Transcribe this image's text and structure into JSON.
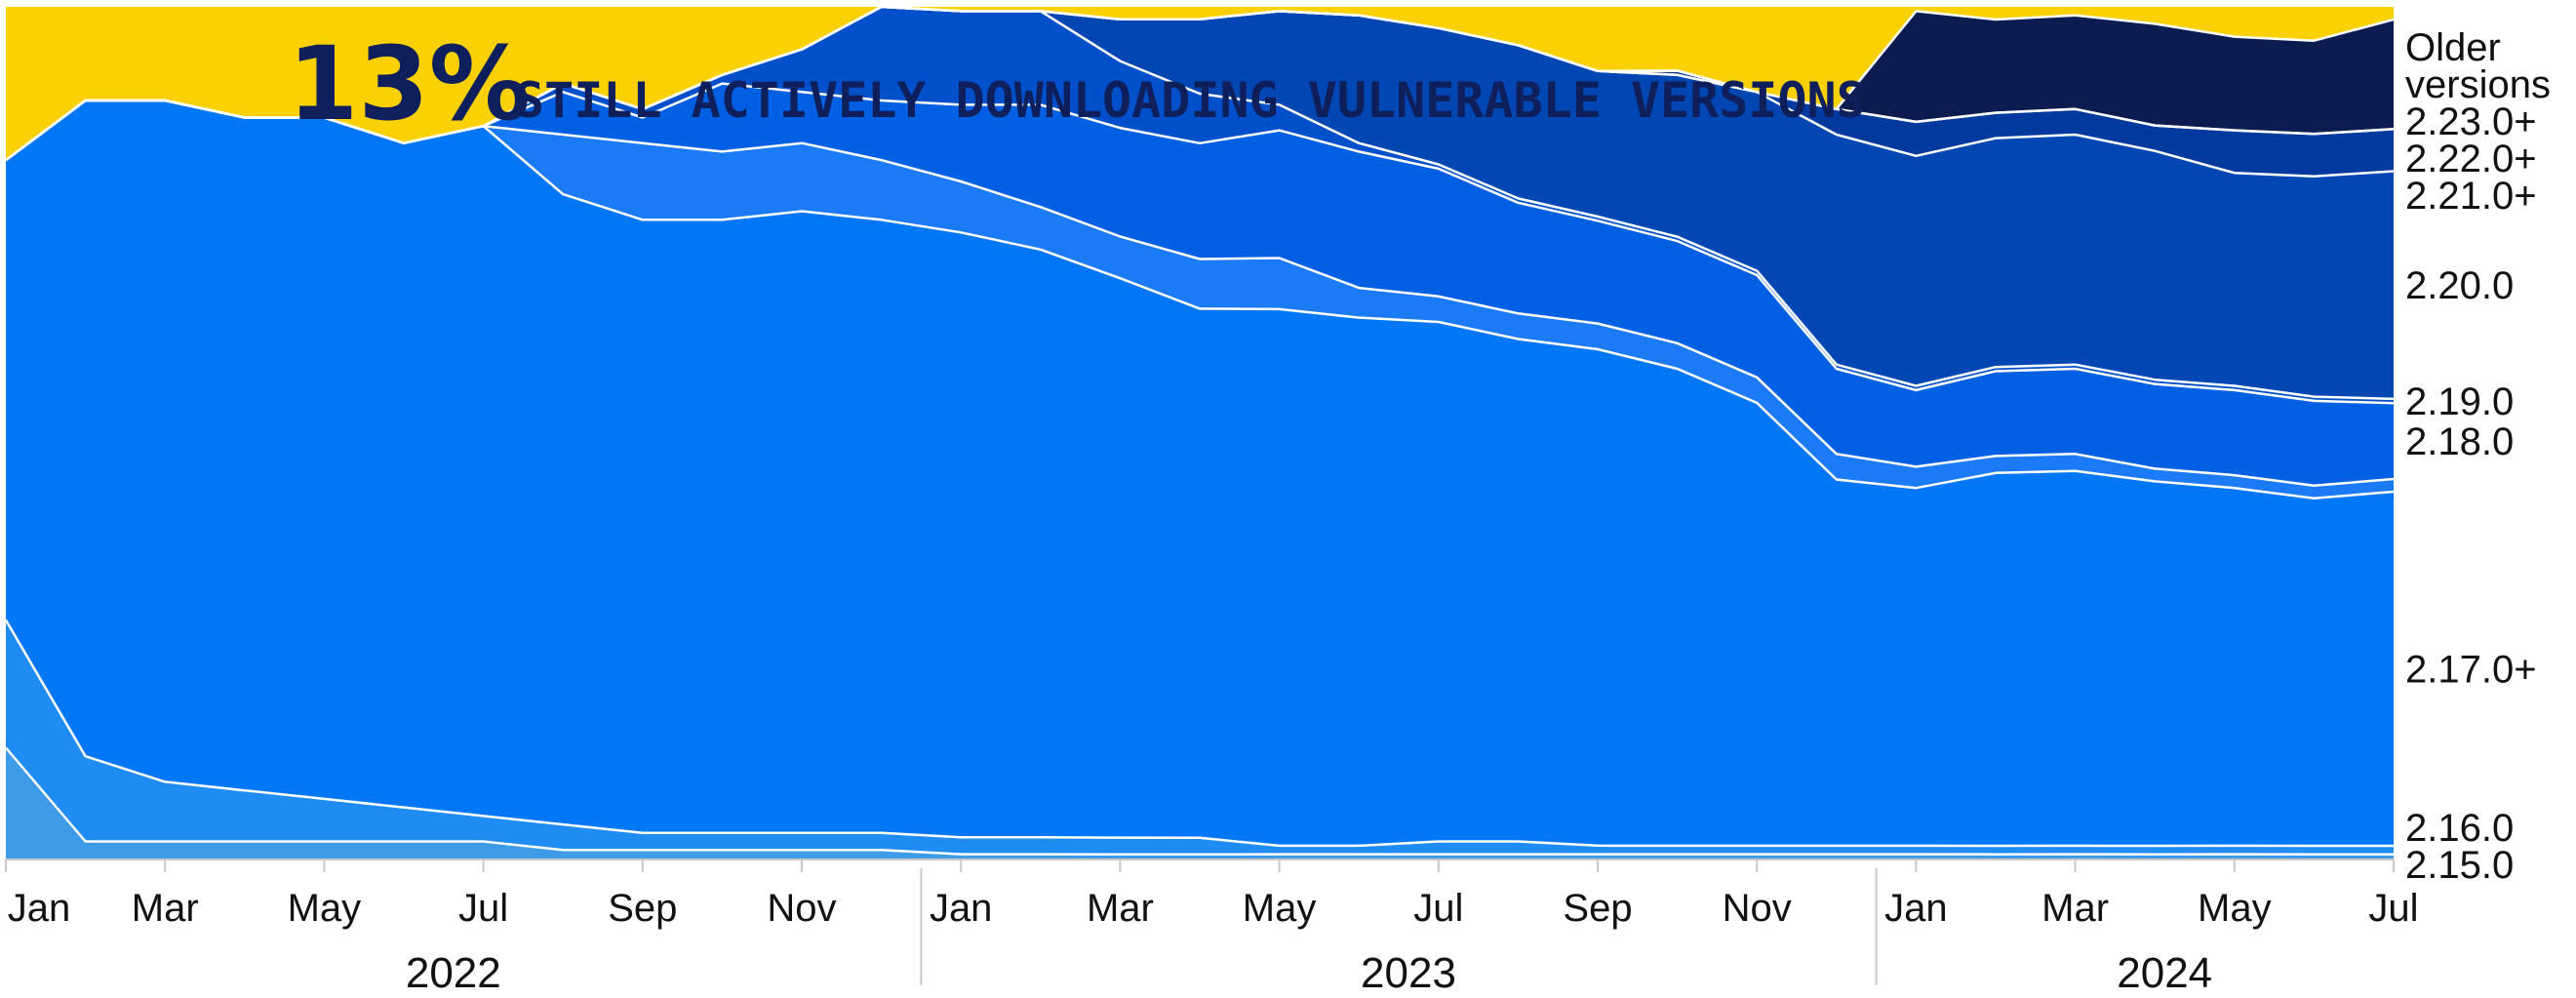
{
  "chart_data": {
    "type": "area",
    "stacked": true,
    "normalized": true,
    "headline": {
      "percent": "13%",
      "text": "STILL ACTIVELY DOWNLOADING VULNERABLE VERSIONS"
    },
    "x": [
      "2022-01",
      "2022-02",
      "2022-03",
      "2022-04",
      "2022-05",
      "2022-06",
      "2022-07",
      "2022-08",
      "2022-09",
      "2022-10",
      "2022-11",
      "2022-12",
      "2023-01",
      "2023-02",
      "2023-03",
      "2023-04",
      "2023-05",
      "2023-06",
      "2023-07",
      "2023-08",
      "2023-09",
      "2023-10",
      "2023-11",
      "2023-12",
      "2024-01",
      "2024-02",
      "2024-03",
      "2024-04",
      "2024-05",
      "2024-06",
      "2024-07"
    ],
    "ylim": [
      0,
      100
    ],
    "series": [
      {
        "name": "2.15.0",
        "color": "#3d9be8",
        "values": [
          13,
          2,
          2,
          2,
          2,
          2,
          2,
          1,
          1,
          1,
          1,
          1,
          0.5,
          0.5,
          0.5,
          0.5,
          0.5,
          0.5,
          0.5,
          0.5,
          0.5,
          0.5,
          0.5,
          0.5,
          0.5,
          0.5,
          0.5,
          0.5,
          0.5,
          0.5,
          0.5
        ]
      },
      {
        "name": "2.16.0",
        "color": "#1e8cf2",
        "values": [
          15,
          10,
          7,
          6,
          5,
          4,
          3,
          3,
          2,
          2,
          2,
          2,
          2,
          2,
          2,
          2,
          1,
          1,
          1.5,
          1.5,
          1,
          1,
          1,
          1,
          1,
          1,
          1,
          1,
          1,
          1,
          1
        ]
      },
      {
        "name": "2.17.0+",
        "color": "#0077f7",
        "values": [
          54,
          77,
          80,
          79,
          80,
          78,
          81,
          74,
          72,
          72,
          73,
          72,
          71,
          69,
          67,
          64,
          63,
          62,
          61,
          59,
          58,
          56,
          52,
          43,
          42,
          44,
          44,
          43,
          42,
          41,
          42
        ]
      },
      {
        "name": "2.18.0",
        "color": "#1b7af5",
        "values": [
          0,
          0,
          0,
          0,
          0,
          0,
          0,
          7,
          9,
          8,
          8,
          7,
          6,
          5,
          5,
          6,
          6,
          3.5,
          3,
          3,
          3,
          3,
          3,
          3,
          2.5,
          2,
          2,
          1.5,
          1.5,
          1.5,
          1.5
        ]
      },
      {
        "name": "2.19.0",
        "color": "#0060e3",
        "values": [
          0,
          0,
          0,
          0,
          0,
          0,
          0,
          5,
          3,
          8,
          6,
          7,
          9,
          12,
          13,
          14,
          15,
          16,
          15,
          13,
          12,
          12,
          12,
          10,
          9,
          10,
          10,
          10,
          10,
          10,
          9
        ]
      },
      {
        "name": "2.20.0",
        "color": "#0050cc",
        "values": [
          0,
          0,
          0,
          0,
          0,
          0,
          0,
          1,
          1,
          1,
          5,
          11,
          11,
          11,
          8,
          6,
          3,
          1,
          0.5,
          0.5,
          0.5,
          0.5,
          0.5,
          0.5,
          0.5,
          0.5,
          0.5,
          0.5,
          0.5,
          0.5,
          0.5
        ]
      },
      {
        "name": "2.21.0+",
        "color": "#0047b3",
        "values": [
          0,
          0,
          0,
          0,
          0,
          0,
          0,
          0,
          0,
          0,
          0,
          0,
          0,
          0,
          5,
          9,
          11,
          15,
          16,
          18,
          17,
          19,
          21,
          27,
          27,
          27,
          27,
          27,
          25,
          26,
          27
        ]
      },
      {
        "name": "2.22.0+",
        "color": "#003a9e",
        "values": [
          0,
          0,
          0,
          0,
          0,
          0,
          0,
          0,
          0,
          0,
          0,
          0,
          0,
          0,
          0,
          0,
          0,
          0,
          0,
          0,
          0,
          0,
          0,
          3,
          4,
          3,
          3,
          3,
          5,
          5,
          5
        ]
      },
      {
        "name": "2.23.0+",
        "color": "#062f7f",
        "values": [
          0,
          0,
          0,
          0,
          0,
          0,
          0,
          0,
          0,
          0,
          0,
          0,
          0,
          0,
          0,
          0,
          0,
          0,
          0,
          0,
          0,
          0.5,
          0,
          0,
          0,
          0,
          0,
          0,
          0,
          0,
          0
        ]
      },
      {
        "name": "",
        "color": "#0c1c50",
        "values": [
          0,
          0,
          0,
          0,
          0,
          0,
          0,
          0,
          0,
          0,
          0,
          0,
          0,
          0,
          0,
          0,
          0,
          0,
          0,
          0,
          0,
          0,
          0,
          0,
          13,
          11,
          11,
          12,
          11,
          11,
          13
        ]
      },
      {
        "name": "Older versions",
        "color": "#fbd103",
        "values": [
          18,
          11,
          11,
          13,
          13,
          16,
          14,
          9,
          12,
          8,
          5,
          0,
          0.5,
          0.5,
          1.5,
          1.5,
          0.5,
          1,
          2.5,
          4.5,
          7.5,
          7.5,
          10,
          12,
          0.5,
          1.5,
          1,
          2,
          3.5,
          4,
          1.5
        ]
      }
    ],
    "series_labels_right": [
      {
        "text": "Older",
        "series": 10
      },
      {
        "text": "versions",
        "series": 10
      },
      {
        "text": "2.23.0+",
        "series": 9
      },
      {
        "text": "2.22.0+",
        "series": 8
      },
      {
        "text": "2.21.0+",
        "series": 7
      },
      {
        "text": "2.20.0",
        "series": 6
      },
      {
        "text": "2.19.0",
        "series": 5
      },
      {
        "text": "2.18.0",
        "series": 4
      },
      {
        "text": "2.17.0+",
        "series": 2
      },
      {
        "text": "2.16.0",
        "series": 1
      },
      {
        "text": "2.15.0",
        "series": 0
      }
    ],
    "month_ticks": [
      {
        "label": "Jan",
        "x": "2022-01"
      },
      {
        "label": "Mar",
        "x": "2022-03"
      },
      {
        "label": "May",
        "x": "2022-05"
      },
      {
        "label": "Jul",
        "x": "2022-07"
      },
      {
        "label": "Sep",
        "x": "2022-09"
      },
      {
        "label": "Nov",
        "x": "2022-11"
      },
      {
        "label": "Jan",
        "x": "2023-01"
      },
      {
        "label": "Mar",
        "x": "2023-03"
      },
      {
        "label": "May",
        "x": "2023-05"
      },
      {
        "label": "Jul",
        "x": "2023-07"
      },
      {
        "label": "Sep",
        "x": "2023-09"
      },
      {
        "label": "Nov",
        "x": "2023-11"
      },
      {
        "label": "Jan",
        "x": "2024-01"
      },
      {
        "label": "Mar",
        "x": "2024-03"
      },
      {
        "label": "May",
        "x": "2024-05"
      },
      {
        "label": "Jul",
        "x": "2024-07"
      }
    ],
    "years": [
      {
        "label": "2022",
        "from": "2022-01",
        "to": "2022-12"
      },
      {
        "label": "2023",
        "from": "2023-01",
        "to": "2023-12"
      },
      {
        "label": "2024",
        "from": "2024-01",
        "to": "2024-07"
      }
    ],
    "legend": "right-edge labels",
    "grid": false
  }
}
